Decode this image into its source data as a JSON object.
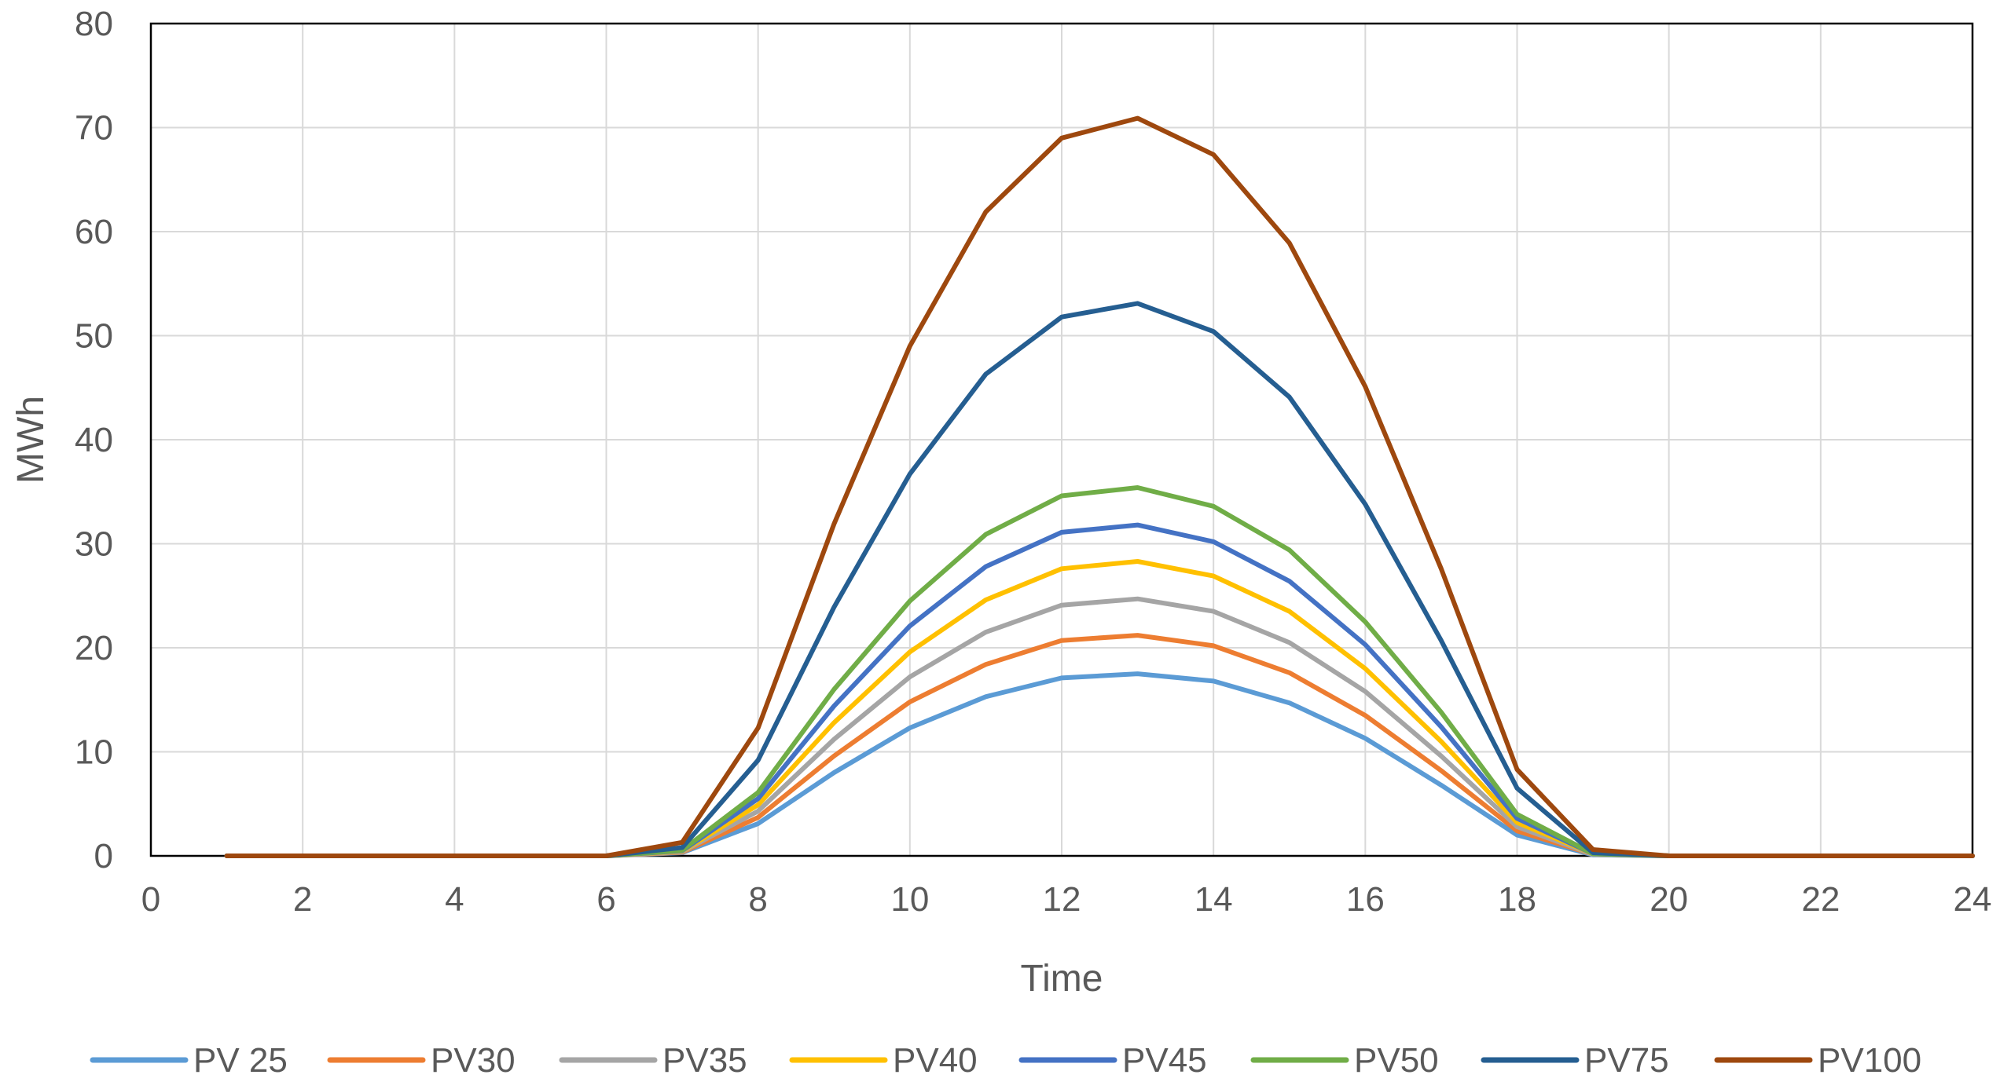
{
  "chart_data": {
    "type": "line",
    "title": "",
    "xlabel": "Time",
    "ylabel": "MWh",
    "xlim": [
      0,
      24
    ],
    "ylim": [
      0,
      80
    ],
    "x_ticks": [
      "0",
      "2",
      "4",
      "6",
      "8",
      "10",
      "12",
      "14",
      "16",
      "18",
      "20",
      "22",
      "24"
    ],
    "y_ticks": [
      "0",
      "10",
      "20",
      "30",
      "40",
      "50",
      "60",
      "70",
      "80"
    ],
    "grid": true,
    "legend_position": "bottom",
    "x": [
      1,
      2,
      3,
      4,
      5,
      6,
      7,
      8,
      9,
      10,
      11,
      12,
      13,
      14,
      15,
      16,
      17,
      18,
      19,
      20,
      21,
      22,
      23,
      24
    ],
    "series": [
      {
        "name": "PV 25",
        "color": "#5b9bd5",
        "values": [
          0,
          0,
          0,
          0,
          0,
          0,
          0.3,
          3.1,
          8.0,
          12.3,
          15.3,
          17.1,
          17.5,
          16.8,
          14.7,
          11.3,
          6.8,
          2.0,
          0.1,
          0,
          0,
          0,
          0,
          0
        ]
      },
      {
        "name": "PV30",
        "color": "#ed7d31",
        "values": [
          0,
          0,
          0,
          0,
          0,
          0,
          0.35,
          3.7,
          9.6,
          14.8,
          18.4,
          20.7,
          21.2,
          20.2,
          17.6,
          13.5,
          8.2,
          2.4,
          0.15,
          0,
          0,
          0,
          0,
          0
        ]
      },
      {
        "name": "PV35",
        "color": "#a5a5a5",
        "values": [
          0,
          0,
          0,
          0,
          0,
          0,
          0.4,
          4.3,
          11.2,
          17.2,
          21.5,
          24.1,
          24.7,
          23.5,
          20.5,
          15.8,
          9.6,
          2.8,
          0.15,
          0,
          0,
          0,
          0,
          0
        ]
      },
      {
        "name": "PV40",
        "color": "#ffc000",
        "values": [
          0,
          0,
          0,
          0,
          0,
          0,
          0.45,
          4.9,
          12.8,
          19.6,
          24.6,
          27.6,
          28.3,
          26.9,
          23.5,
          18.0,
          11.0,
          3.2,
          0.2,
          0,
          0,
          0,
          0,
          0
        ]
      },
      {
        "name": "PV45",
        "color": "#4472c4",
        "values": [
          0,
          0,
          0,
          0,
          0,
          0,
          0.5,
          5.5,
          14.4,
          22.1,
          27.8,
          31.1,
          31.8,
          30.2,
          26.4,
          20.3,
          12.4,
          3.6,
          0.2,
          0,
          0,
          0,
          0,
          0
        ]
      },
      {
        "name": "PV50",
        "color": "#70ad47",
        "values": [
          0,
          0,
          0,
          0,
          0,
          0,
          0.55,
          6.1,
          16.0,
          24.5,
          30.9,
          34.6,
          35.4,
          33.6,
          29.4,
          22.5,
          13.8,
          4.0,
          0.2,
          0,
          0,
          0,
          0,
          0
        ]
      },
      {
        "name": "PV75",
        "color": "#255e91",
        "values": [
          0,
          0,
          0,
          0,
          0,
          0,
          0.8,
          9.2,
          23.9,
          36.7,
          46.3,
          51.8,
          53.1,
          50.4,
          44.1,
          33.8,
          20.7,
          6.5,
          0.3,
          0,
          0,
          0,
          0,
          0
        ]
      },
      {
        "name": "PV100",
        "color": "#9e480e",
        "values": [
          0,
          0,
          0,
          0,
          0,
          0,
          1.3,
          12.3,
          31.9,
          49.0,
          61.9,
          69.0,
          70.9,
          67.4,
          58.9,
          45.1,
          27.6,
          8.3,
          0.6,
          0,
          0,
          0,
          0,
          0
        ]
      }
    ]
  }
}
